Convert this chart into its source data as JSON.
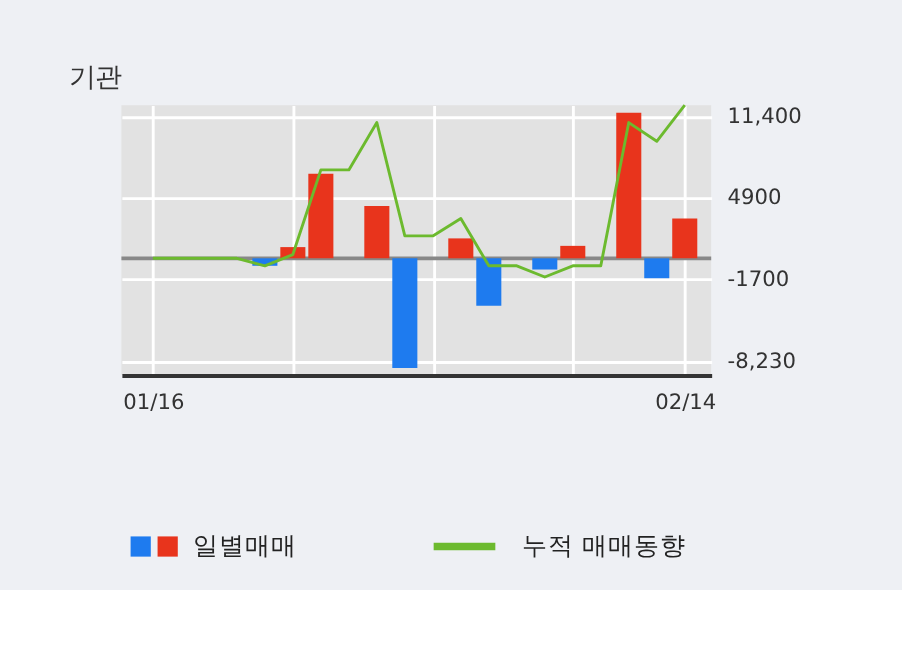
{
  "chart_data": {
    "type": "bar",
    "title": "기관",
    "categories": [
      "01/16",
      null,
      null,
      null,
      null,
      null,
      null,
      null,
      null,
      null,
      null,
      null,
      null,
      null,
      null,
      null,
      null,
      null,
      null,
      "02/14"
    ],
    "series": [
      {
        "name": "일별매매",
        "colors": [
          "#e8341c",
          "#e8341c",
          "#e8341c",
          "#e8341c",
          "#1e7bef",
          "#e8341c",
          "#e8341c",
          "#e8341c",
          "#e8341c",
          "#1e7bef",
          "#e8341c",
          "#e8341c",
          "#1e7bef",
          "#e8341c",
          "#1e7bef",
          "#e8341c",
          "#e8341c",
          "#e8341c",
          "#1e7bef",
          "#e8341c"
        ],
        "values": [
          0,
          0,
          0,
          0,
          -600,
          900,
          6800,
          0,
          4200,
          -8800,
          0,
          1600,
          -3800,
          0,
          -900,
          1000,
          0,
          11700,
          -1600,
          3200
        ]
      },
      {
        "name": "누적 매매동향",
        "type": "line",
        "color": "#6cba2e",
        "values": [
          0,
          0,
          0,
          0,
          -600,
          300,
          7100,
          7100,
          10900,
          1800,
          1800,
          3200,
          -600,
          -600,
          -1500,
          -600,
          -600,
          10900,
          9400,
          12300
        ]
      }
    ],
    "ylim": [
      -9370,
      12300
    ],
    "yticks": [
      {
        "value": 11400,
        "label": "11,400"
      },
      4900,
      -1700,
      {
        "value": -8230,
        "label": "-8,230"
      }
    ],
    "ref_lines": [
      {
        "axis": "y",
        "value": 0,
        "color": "#888888"
      }
    ],
    "grid": true,
    "legend": "bottom"
  }
}
